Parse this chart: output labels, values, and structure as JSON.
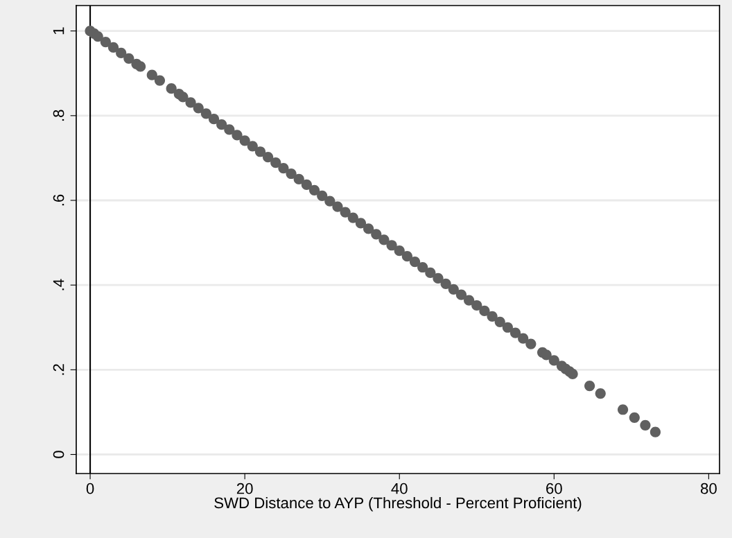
{
  "chart_data": {
    "type": "scatter",
    "xlabel": "SWD Distance to AYP (Threshold - Percent Proficient)",
    "xlim": [
      -1.8,
      81.4
    ],
    "ylim": [
      -0.045,
      1.06
    ],
    "xticks": [
      0,
      20,
      40,
      60,
      80
    ],
    "yticks": [
      {
        "value": 0,
        "label": "0"
      },
      {
        "value": 0.2,
        "label": ".2"
      },
      {
        "value": 0.4,
        "label": ".4"
      },
      {
        "value": 0.6,
        "label": ".6"
      },
      {
        "value": 0.8,
        "label": ".8"
      },
      {
        "value": 1,
        "label": "1"
      }
    ],
    "grid": "y",
    "marker": "circle",
    "ref_lines": [
      {
        "axis": "x",
        "value": 0,
        "color": "#000000"
      }
    ],
    "series": [
      {
        "color": "#606060",
        "x": [
          0,
          0.5,
          1,
          2,
          3,
          4,
          5,
          6,
          6.5,
          8,
          9,
          10.5,
          11.5,
          12,
          13,
          14,
          15,
          16,
          17,
          18,
          19,
          20,
          21,
          22,
          23,
          24,
          25,
          26,
          27,
          28,
          29,
          30,
          31,
          32,
          33,
          34,
          35,
          36,
          37,
          38,
          39,
          40,
          41,
          42,
          43,
          44,
          45,
          46,
          47,
          48,
          49,
          50,
          51,
          52,
          53,
          54,
          55,
          56,
          57,
          58.5,
          59,
          60,
          61,
          61.5,
          62,
          62.4,
          64.6,
          66,
          68.9,
          70.4,
          71.8,
          73.1
        ],
        "values": [
          1.0,
          0.994,
          0.987,
          0.974,
          0.961,
          0.948,
          0.935,
          0.922,
          0.916,
          0.896,
          0.883,
          0.864,
          0.851,
          0.844,
          0.831,
          0.818,
          0.805,
          0.792,
          0.779,
          0.767,
          0.754,
          0.741,
          0.728,
          0.715,
          0.702,
          0.689,
          0.676,
          0.663,
          0.65,
          0.637,
          0.624,
          0.611,
          0.598,
          0.585,
          0.572,
          0.559,
          0.546,
          0.533,
          0.52,
          0.507,
          0.494,
          0.481,
          0.468,
          0.455,
          0.442,
          0.429,
          0.416,
          0.403,
          0.39,
          0.377,
          0.364,
          0.352,
          0.339,
          0.326,
          0.313,
          0.3,
          0.287,
          0.274,
          0.261,
          0.241,
          0.235,
          0.222,
          0.209,
          0.202,
          0.196,
          0.19,
          0.162,
          0.144,
          0.106,
          0.087,
          0.069,
          0.053
        ]
      }
    ]
  }
}
